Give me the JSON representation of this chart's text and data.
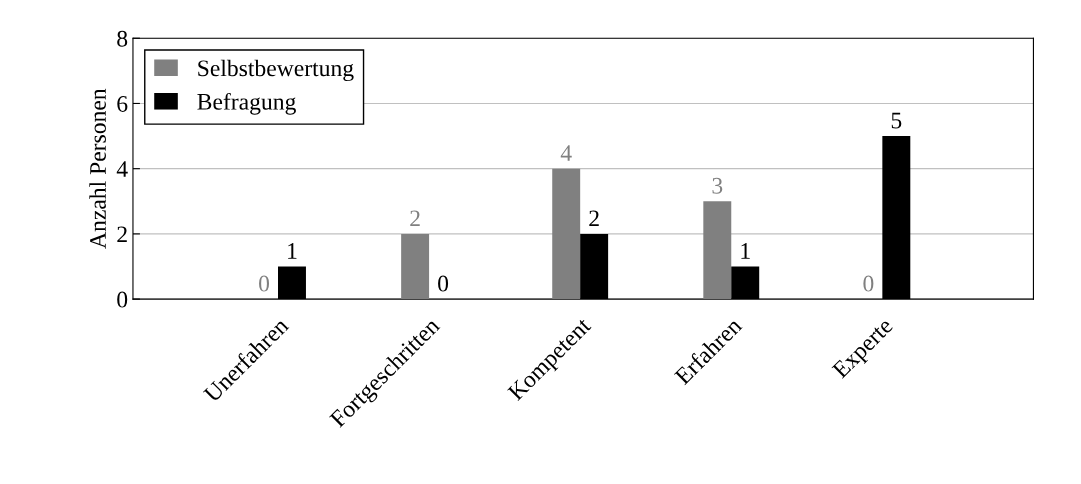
{
  "chart_data": {
    "type": "bar",
    "ylabel": "Anzahl Personen",
    "categories": [
      "Unerfahren",
      "Fortgeschritten",
      "Kompetent",
      "Erfahren",
      "Experte"
    ],
    "series": [
      {
        "name": "Selbstbewertung",
        "color": "#808080",
        "values": [
          0,
          2,
          4,
          3,
          0
        ]
      },
      {
        "name": "Befragung",
        "color": "#000000",
        "values": [
          1,
          0,
          2,
          1,
          5
        ]
      }
    ],
    "ylim": [
      0,
      8
    ],
    "yticks": [
      0,
      2,
      4,
      6,
      8
    ],
    "grid": "y",
    "legend": "top left",
    "data_labels": true
  }
}
